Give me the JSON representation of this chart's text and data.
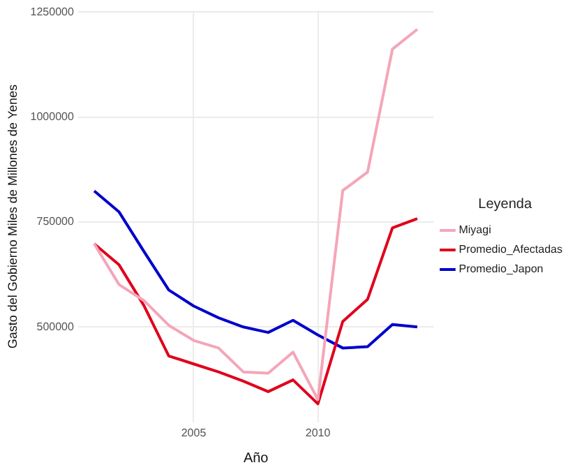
{
  "chart_data": {
    "type": "line",
    "xlabel": "Año",
    "ylabel": "Gasto del Gobierno Miles de Millones de Yenes",
    "legend_title": "Leyenda",
    "x": [
      2001,
      2002,
      2003,
      2004,
      2005,
      2006,
      2007,
      2008,
      2009,
      2010,
      2011,
      2012,
      2013,
      2014
    ],
    "series": [
      {
        "name": "Miyagi",
        "color": "#f4a6b8",
        "values": [
          698000,
          601000,
          563000,
          504000,
          468000,
          450000,
          393000,
          390000,
          440000,
          327000,
          825000,
          869000,
          1162000,
          1209000
        ]
      },
      {
        "name": "Promedio_Afectadas",
        "color": "#e0001b",
        "values": [
          698000,
          648000,
          551000,
          431000,
          412000,
          393000,
          371000,
          346000,
          374000,
          317000,
          513000,
          566000,
          736000,
          758000
        ]
      },
      {
        "name": "Promedio_Japon",
        "color": "#0000cc",
        "values": [
          824000,
          774000,
          680000,
          588000,
          550000,
          522000,
          500000,
          487000,
          516000,
          481000,
          450000,
          453000,
          506000,
          500000
        ]
      }
    ],
    "xlim": [
      2000.35,
      2014.66
    ],
    "xticks": [
      2005,
      2010
    ],
    "ylim": [
      273000,
      1253000
    ],
    "yticks": [
      500000,
      750000,
      1000000,
      1250000
    ],
    "grid": true,
    "legend": "right",
    "marker": "none",
    "line_style": "solid"
  }
}
